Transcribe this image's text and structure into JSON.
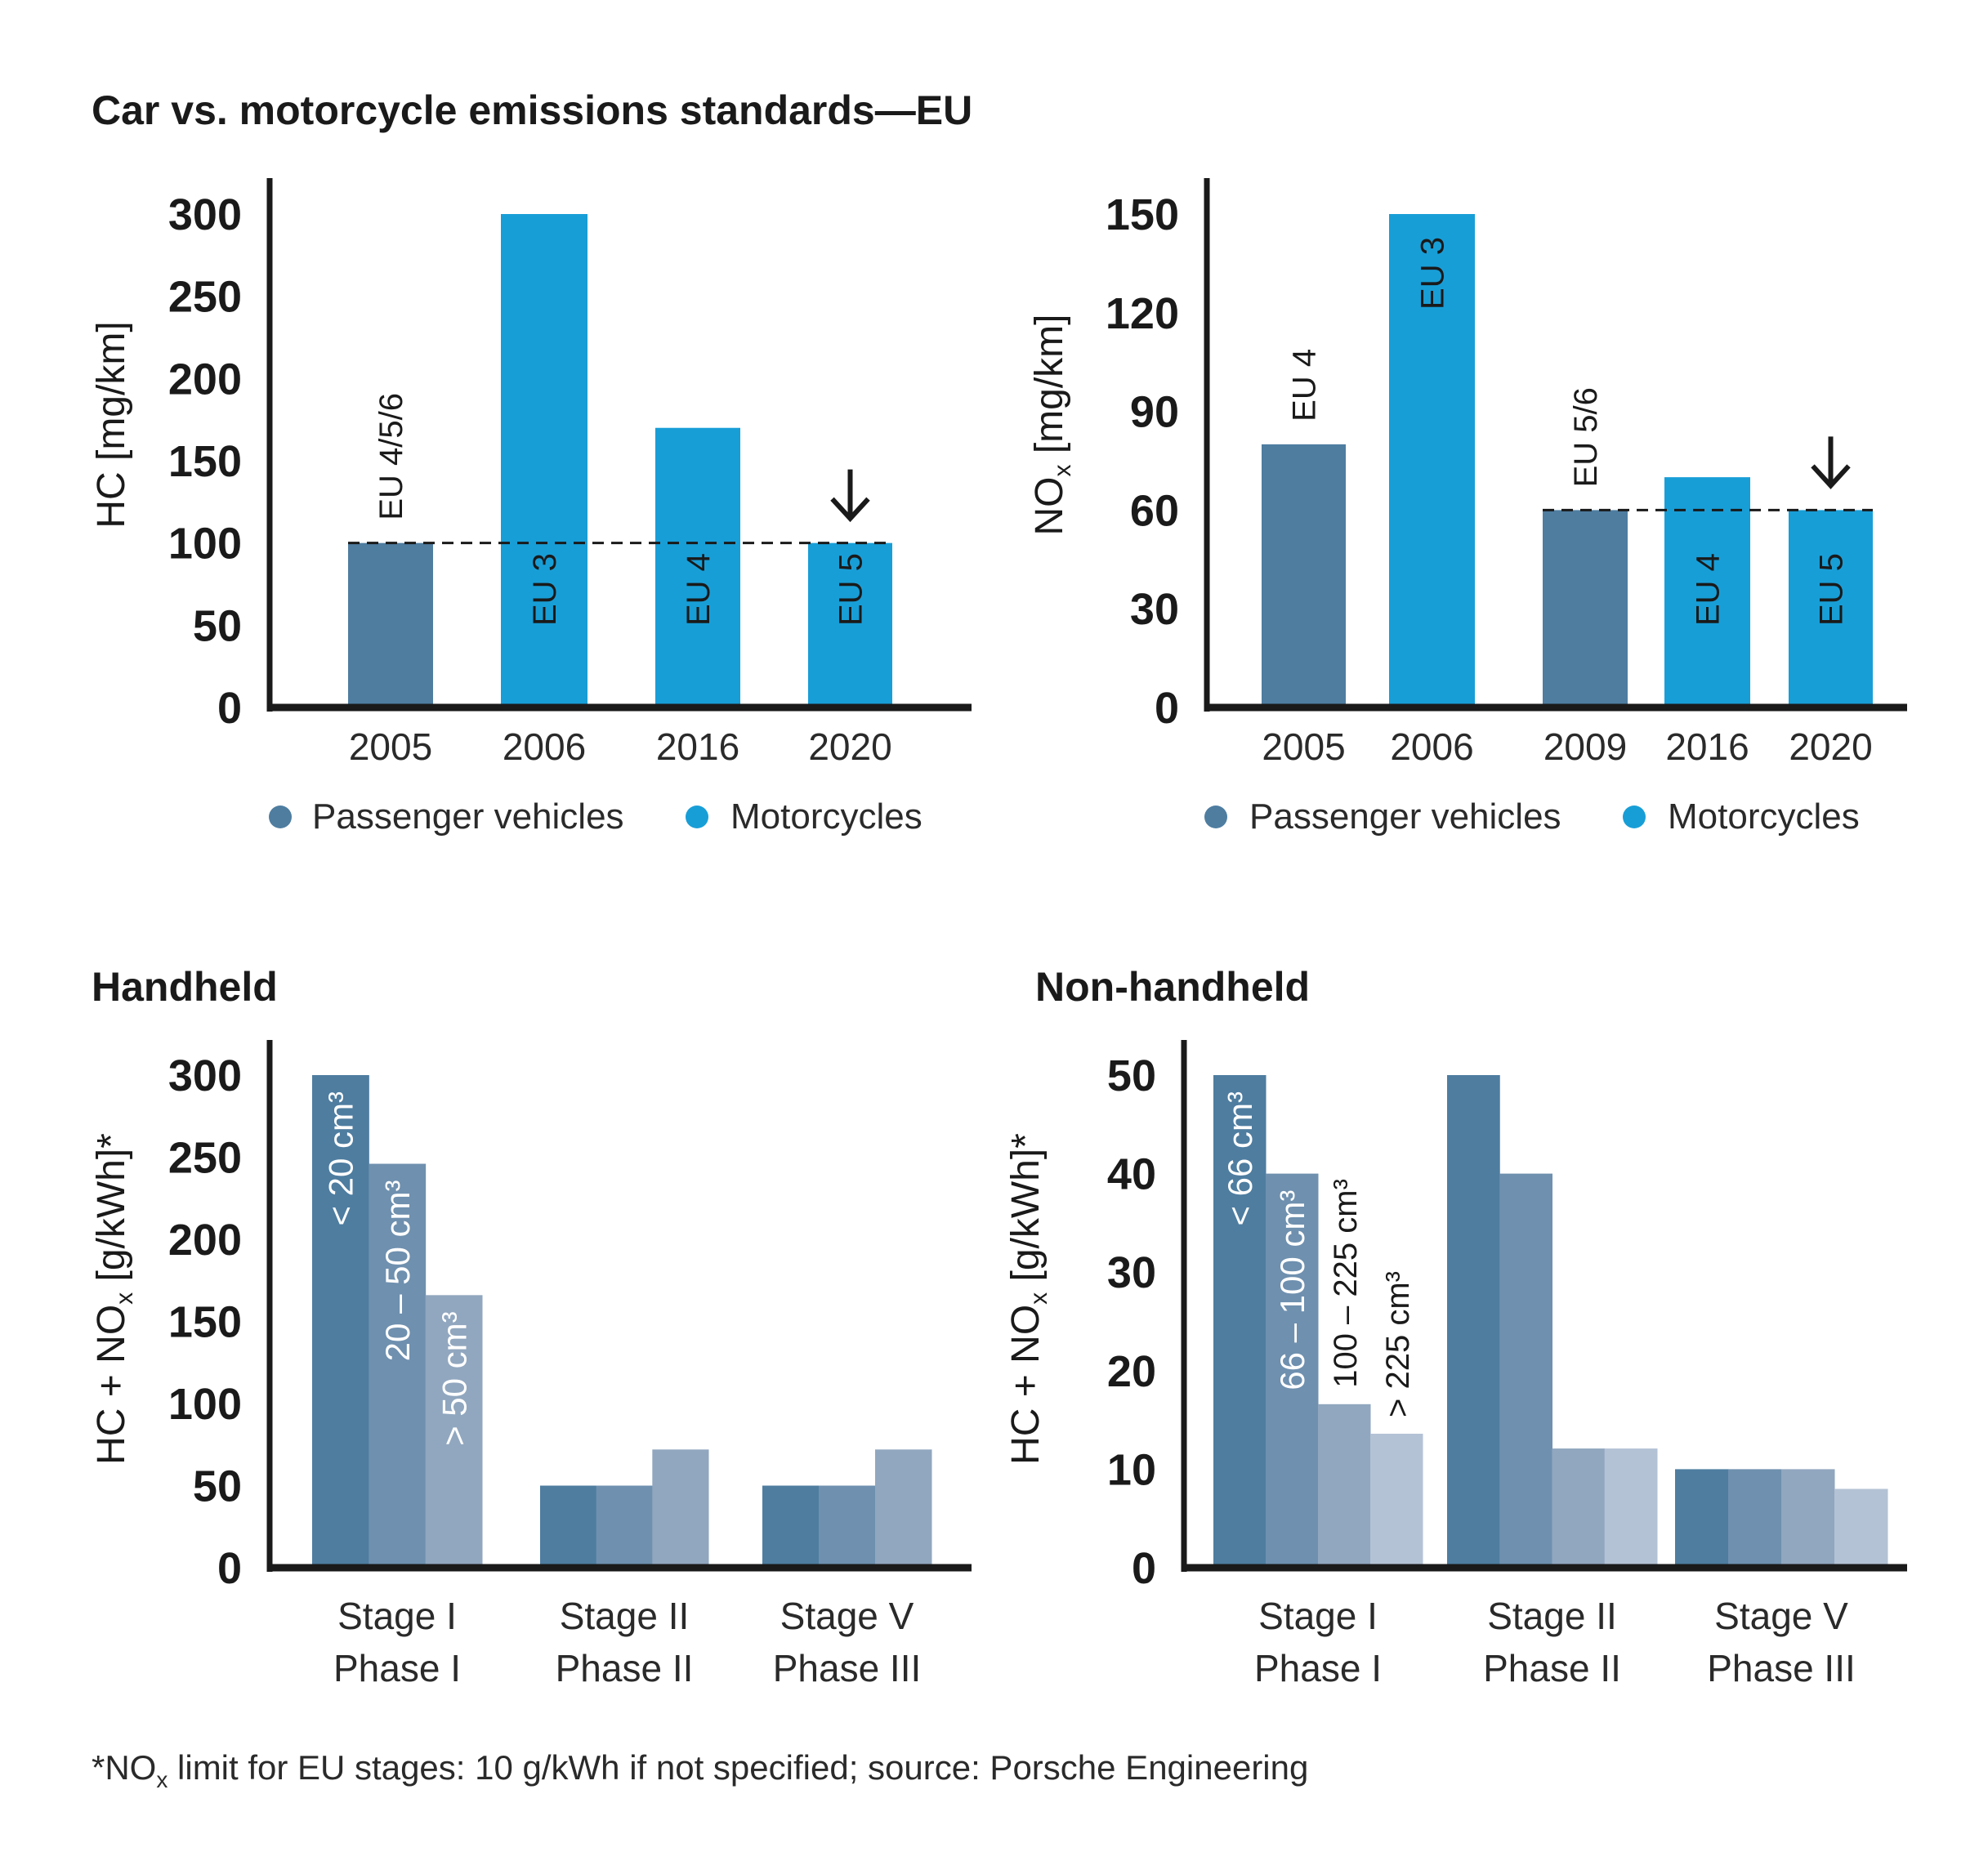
{
  "page": {
    "title": "Car vs. motorcycle emissions standards—EU",
    "footnote": "*NOx limit for EU stages: 10 g/kWh if not specified; source: Porsche Engineering",
    "footnote_parts": {
      "star_no": "*NO",
      "sub_x": "x",
      "rest": " limit for EU stages: 10 g/kWh if not specified; source: Porsche Engineering"
    }
  },
  "colors": {
    "passenger": "#4e7da0",
    "motorcycle": "#189ed7",
    "size1": "#4e7da0",
    "size2": "#6f90af",
    "size3": "#91a7bf",
    "size4": "#b4c2d5",
    "axis": "#1a1a1a"
  },
  "chart_data": [
    {
      "id": "hc",
      "type": "bar",
      "title": "",
      "ylabel": "HC [mg/km]",
      "ylim": [
        0,
        300
      ],
      "yticks": [
        0,
        50,
        100,
        150,
        200,
        250,
        300
      ],
      "categories": [
        "2005",
        "2006",
        "2016",
        "2020"
      ],
      "bars": [
        {
          "category": "2005",
          "series": "Passenger vehicles",
          "value": 100,
          "label": "EU 4/5/6",
          "label_pos": "above"
        },
        {
          "category": "2006",
          "series": "Motorcycles",
          "value": 300,
          "label": "EU 3",
          "label_pos": "inside-low"
        },
        {
          "category": "2016",
          "series": "Motorcycles",
          "value": 170,
          "label": "EU 4",
          "label_pos": "inside-low"
        },
        {
          "category": "2020",
          "series": "Motorcycles",
          "value": 100,
          "label": "EU 5",
          "label_pos": "inside-low",
          "arrow": true
        }
      ],
      "reference_line": {
        "value": 100,
        "style": "dashed"
      },
      "legend": [
        "Passenger vehicles",
        "Motorcycles"
      ],
      "legend_position": "bottom"
    },
    {
      "id": "nox",
      "type": "bar",
      "title": "",
      "ylabel": "NOx [mg/km]",
      "ylabel_main": "NO",
      "ylabel_sub": "x",
      "ylabel_rest": " [mg/km]",
      "ylim": [
        0,
        150
      ],
      "yticks": [
        0,
        30,
        60,
        90,
        120,
        150
      ],
      "categories": [
        "2005",
        "2006",
        "2009",
        "2016",
        "2020"
      ],
      "bars": [
        {
          "category": "2005",
          "series": "Passenger vehicles",
          "value": 80,
          "label": "EU 4",
          "label_pos": "above"
        },
        {
          "category": "2006",
          "series": "Motorcycles",
          "value": 150,
          "label": "EU 3",
          "label_pos": "inside-top"
        },
        {
          "category": "2009",
          "series": "Passenger vehicles",
          "value": 60,
          "label": "EU 5/6",
          "label_pos": "above"
        },
        {
          "category": "2016",
          "series": "Motorcycles",
          "value": 70,
          "label": "EU 4",
          "label_pos": "inside-low"
        },
        {
          "category": "2020",
          "series": "Motorcycles",
          "value": 60,
          "label": "EU 5",
          "label_pos": "inside-low",
          "arrow": true
        }
      ],
      "reference_line": {
        "value": 60,
        "style": "dashed"
      },
      "legend": [
        "Passenger vehicles",
        "Motorcycles"
      ],
      "legend_position": "bottom"
    },
    {
      "id": "handheld",
      "type": "bar",
      "title": "Handheld",
      "ylabel": "HC + NOx [g/kWh]*",
      "ylabel_main": "HC + NO",
      "ylabel_sub": "x",
      "ylabel_rest": " [g/kWh]*",
      "ylim": [
        0,
        300
      ],
      "yticks": [
        0,
        50,
        100,
        150,
        200,
        250,
        300
      ],
      "categories": [
        {
          "line1": "Stage I",
          "line2": "Phase I"
        },
        {
          "line1": "Stage II",
          "line2": "Phase II"
        },
        {
          "line1": "Stage V",
          "line2": "Phase III"
        }
      ],
      "series": [
        {
          "name": "< 20 cm³",
          "values": [
            300,
            50,
            50
          ]
        },
        {
          "name": "20 – 50 cm³",
          "values": [
            246,
            50,
            50
          ]
        },
        {
          "name": "> 50 cm³",
          "values": [
            166,
            72,
            72
          ]
        }
      ]
    },
    {
      "id": "nonhandheld",
      "type": "bar",
      "title": "Non-handheld",
      "ylabel": "HC + NOx [g/kWh]*",
      "ylabel_main": "HC + NO",
      "ylabel_sub": "x",
      "ylabel_rest": " [g/kWh]*",
      "ylim": [
        0,
        50
      ],
      "yticks": [
        0,
        10,
        20,
        30,
        40,
        50
      ],
      "categories": [
        {
          "line1": "Stage I",
          "line2": "Phase I"
        },
        {
          "line1": "Stage II",
          "line2": "Phase II"
        },
        {
          "line1": "Stage V",
          "line2": "Phase III"
        }
      ],
      "series": [
        {
          "name": "< 66 cm³",
          "values": [
            50,
            50,
            10
          ]
        },
        {
          "name": "66 – 100 cm³",
          "values": [
            40,
            40,
            10
          ]
        },
        {
          "name": "100 – 225 cm³",
          "values": [
            16.6,
            12.1,
            10
          ]
        },
        {
          "name": "> 225 cm³",
          "values": [
            13.6,
            12.1,
            8
          ]
        }
      ]
    }
  ]
}
